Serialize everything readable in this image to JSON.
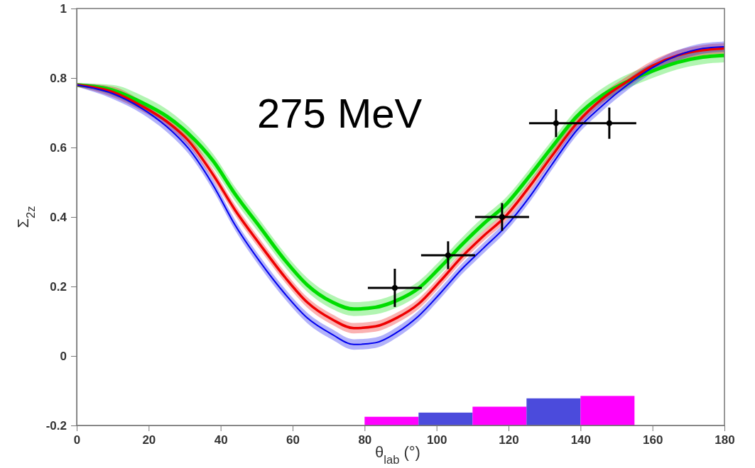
{
  "chart_data": {
    "type": "line",
    "xlabel": "θ$_{lab}$ (°)",
    "ylabel": "Σ$_{2z}$",
    "annotations": [
      "275 MeV"
    ],
    "xlim": [
      0,
      180
    ],
    "xticks": [
      0,
      20,
      40,
      60,
      80,
      100,
      120,
      140,
      160,
      180
    ],
    "ylim": [
      -0.2,
      1
    ],
    "yticks": [
      -0.2,
      0,
      0.2,
      0.4,
      0.6,
      0.8,
      1
    ],
    "grid": false,
    "marker": "none",
    "line_style": "solid",
    "series": [
      {
        "type": "bar",
        "x": [
          87.5,
          102.5,
          117.5,
          132.5,
          147.5
        ],
        "base": [
          -0.2,
          -0.2,
          -0.2,
          -0.2,
          -0.2
        ],
        "values": [
          0.025,
          0.037,
          0.054,
          0.078,
          0.085
        ],
        "colors": [
          "#ff00ff",
          "#4b4bdc",
          "#ff00ff",
          "#4b4bdc",
          "#ff00ff"
        ]
      },
      {
        "color": "#00dd00",
        "x": [
          0,
          10,
          18,
          25,
          31,
          38,
          44,
          51,
          58,
          64,
          71,
          77,
          83,
          89,
          95,
          101,
          107,
          113,
          119,
          126,
          132,
          139,
          146,
          153,
          160,
          167,
          174,
          180
        ],
        "values": [
          0.78,
          0.765,
          0.73,
          0.69,
          0.64,
          0.56,
          0.466,
          0.37,
          0.274,
          0.205,
          0.155,
          0.135,
          0.14,
          0.16,
          0.195,
          0.255,
          0.32,
          0.38,
          0.433,
          0.52,
          0.6,
          0.69,
          0.75,
          0.79,
          0.82,
          0.845,
          0.86,
          0.865
        ],
        "lower": [
          0.775,
          0.75,
          0.71,
          0.67,
          0.62,
          0.54,
          0.446,
          0.35,
          0.254,
          0.185,
          0.135,
          0.115,
          0.12,
          0.14,
          0.175,
          0.235,
          0.3,
          0.36,
          0.413,
          0.5,
          0.58,
          0.67,
          0.73,
          0.77,
          0.8,
          0.825,
          0.84,
          0.845
        ],
        "upper": [
          0.785,
          0.78,
          0.75,
          0.71,
          0.66,
          0.58,
          0.486,
          0.39,
          0.294,
          0.225,
          0.175,
          0.155,
          0.16,
          0.18,
          0.215,
          0.275,
          0.34,
          0.4,
          0.453,
          0.54,
          0.62,
          0.71,
          0.77,
          0.81,
          0.84,
          0.865,
          0.88,
          0.885
        ]
      },
      {
        "color": "#ee0000",
        "x": [
          0,
          10,
          18,
          25,
          31,
          38,
          44,
          51,
          58,
          64,
          71,
          77,
          83,
          89,
          95,
          101,
          107,
          113,
          119,
          126,
          132,
          139,
          146,
          153,
          160,
          167,
          174,
          180
        ],
        "values": [
          0.78,
          0.76,
          0.72,
          0.675,
          0.62,
          0.52,
          0.42,
          0.32,
          0.225,
          0.155,
          0.105,
          0.08,
          0.085,
          0.11,
          0.15,
          0.215,
          0.285,
          0.345,
          0.4,
          0.49,
          0.575,
          0.67,
          0.74,
          0.79,
          0.835,
          0.865,
          0.88,
          0.885
        ],
        "lower": [
          0.775,
          0.745,
          0.705,
          0.66,
          0.605,
          0.505,
          0.405,
          0.305,
          0.21,
          0.14,
          0.09,
          0.065,
          0.07,
          0.095,
          0.135,
          0.2,
          0.27,
          0.33,
          0.385,
          0.475,
          0.56,
          0.655,
          0.725,
          0.775,
          0.82,
          0.85,
          0.865,
          0.87
        ],
        "upper": [
          0.785,
          0.775,
          0.735,
          0.69,
          0.635,
          0.535,
          0.435,
          0.335,
          0.24,
          0.17,
          0.12,
          0.095,
          0.1,
          0.125,
          0.165,
          0.23,
          0.3,
          0.36,
          0.415,
          0.505,
          0.59,
          0.685,
          0.755,
          0.805,
          0.85,
          0.88,
          0.895,
          0.9
        ]
      },
      {
        "color": "#0000ee",
        "x": [
          0,
          10,
          18,
          25,
          31,
          38,
          44,
          51,
          58,
          64,
          71,
          77,
          83,
          89,
          95,
          101,
          107,
          113,
          119,
          126,
          132,
          139,
          146,
          153,
          160,
          167,
          174,
          180
        ],
        "values": [
          0.78,
          0.755,
          0.713,
          0.66,
          0.598,
          0.49,
          0.377,
          0.27,
          0.177,
          0.11,
          0.062,
          0.033,
          0.038,
          0.068,
          0.115,
          0.18,
          0.25,
          0.31,
          0.37,
          0.46,
          0.55,
          0.65,
          0.72,
          0.78,
          0.83,
          0.865,
          0.885,
          0.89
        ],
        "lower": [
          0.775,
          0.74,
          0.698,
          0.645,
          0.583,
          0.475,
          0.362,
          0.255,
          0.162,
          0.095,
          0.047,
          0.018,
          0.023,
          0.053,
          0.1,
          0.165,
          0.235,
          0.295,
          0.355,
          0.445,
          0.535,
          0.635,
          0.705,
          0.765,
          0.815,
          0.85,
          0.87,
          0.875
        ],
        "upper": [
          0.785,
          0.77,
          0.728,
          0.675,
          0.613,
          0.505,
          0.392,
          0.285,
          0.192,
          0.125,
          0.077,
          0.048,
          0.053,
          0.083,
          0.13,
          0.195,
          0.265,
          0.325,
          0.385,
          0.475,
          0.565,
          0.665,
          0.735,
          0.795,
          0.845,
          0.88,
          0.9,
          0.905
        ]
      },
      {
        "type": "scatter",
        "color": "#000000",
        "marker": "circle",
        "x": [
          88.4,
          103.2,
          118.2,
          133.2,
          148
        ],
        "values": [
          0.196,
          0.29,
          0.4,
          0.67,
          0.67
        ],
        "errors": [
          0.055,
          0.04,
          0.04,
          0.04,
          0.045
        ],
        "xerrors": [
          7.5,
          7.5,
          7.5,
          7.5,
          7.5
        ]
      }
    ]
  }
}
